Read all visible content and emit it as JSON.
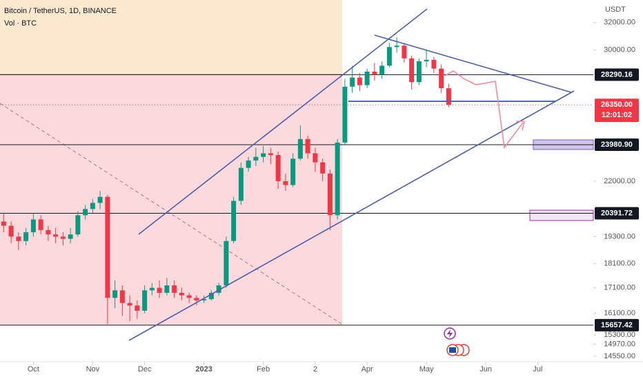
{
  "chart_data": {
    "type": "candlestick",
    "title": "Bitcoin / TetherUS, 1D, BINANCE",
    "subtitle": "Vol · BTC",
    "y_axis_label": "USDT",
    "up_color": "#089981",
    "down_color": "#f23645",
    "log_scale": true,
    "open": [
      20000,
      19800,
      19300,
      19100,
      19500,
      20100,
      19600,
      19400,
      19300,
      19200,
      19400,
      20300,
      20600,
      20900,
      21200,
      16700,
      17000,
      16500,
      16400,
      16200,
      17000,
      17100,
      16900,
      17200,
      16900,
      16800,
      16700,
      16600,
      16650,
      16900,
      17200,
      19100,
      21000,
      22700,
      23100,
      23300,
      23500,
      23400,
      22000,
      21800,
      23200,
      24300,
      23500,
      23000,
      22400,
      20300,
      24100,
      27500,
      28100,
      27600,
      28500,
      28300,
      28900,
      30200,
      30300,
      29400,
      27800,
      29200,
      29300,
      28700,
      27400,
      null,
      null,
      null,
      null,
      null,
      null,
      null,
      null,
      null,
      null,
      null,
      null,
      null,
      null,
      null,
      null,
      null,
      null,
      null
    ],
    "high": [
      20400,
      20000,
      19500,
      19700,
      20400,
      20300,
      19800,
      19700,
      19500,
      19700,
      20500,
      20800,
      21100,
      21500,
      21300,
      17400,
      17200,
      16800,
      16600,
      17200,
      17300,
      17400,
      17500,
      17400,
      17100,
      16900,
      16800,
      16800,
      17000,
      17300,
      19300,
      21200,
      23000,
      23300,
      23800,
      23900,
      23800,
      23600,
      22400,
      23500,
      25100,
      24500,
      23800,
      23200,
      22600,
      24300,
      28000,
      28900,
      28400,
      28700,
      29100,
      29200,
      30500,
      30900,
      30500,
      29600,
      29400,
      30000,
      29500,
      29000,
      27700,
      null,
      null,
      null,
      null,
      null,
      null,
      null,
      null,
      null,
      null,
      null,
      null,
      null,
      null,
      null,
      null,
      null,
      null,
      null
    ],
    "low": [
      19500,
      19000,
      18700,
      18900,
      19300,
      19400,
      19100,
      19000,
      18900,
      19000,
      19300,
      20100,
      20400,
      20600,
      15700,
      16300,
      16000,
      15800,
      15900,
      16100,
      16800,
      16700,
      16800,
      16700,
      16600,
      16500,
      16400,
      16500,
      16600,
      16800,
      17100,
      19000,
      20800,
      22500,
      22800,
      23000,
      22900,
      21600,
      21500,
      21700,
      23100,
      23200,
      22500,
      22000,
      19600,
      20100,
      24000,
      27100,
      27200,
      27400,
      27900,
      28000,
      28800,
      29800,
      29100,
      27300,
      27600,
      28800,
      28400,
      27100,
      26200,
      null,
      null,
      null,
      null,
      null,
      null,
      null,
      null,
      null,
      null,
      null,
      null,
      null,
      null,
      null,
      null,
      null,
      null,
      null
    ],
    "close": [
      19800,
      19300,
      19100,
      19500,
      20100,
      19600,
      19400,
      19300,
      19200,
      19400,
      20300,
      20600,
      20900,
      21200,
      16700,
      17000,
      16500,
      16400,
      16200,
      17000,
      17100,
      16900,
      17200,
      16900,
      16800,
      16700,
      16600,
      16650,
      16900,
      17200,
      19100,
      21000,
      22700,
      23100,
      23300,
      23500,
      23400,
      22000,
      21800,
      23200,
      24300,
      23500,
      23000,
      22400,
      20300,
      24100,
      27500,
      28100,
      27600,
      28500,
      28300,
      28900,
      30200,
      30300,
      29400,
      27800,
      29200,
      29300,
      28700,
      27400,
      26350,
      null,
      null,
      null,
      null,
      null,
      null,
      null,
      null,
      null,
      null,
      null,
      null,
      null,
      null,
      null,
      null,
      null,
      null,
      null
    ],
    "xlim": [
      -0.5,
      79.5
    ],
    "xticks": [
      {
        "value": 4,
        "label": "Oct"
      },
      {
        "value": 12,
        "label": "Nov"
      },
      {
        "value": 19,
        "label": "Dec"
      },
      {
        "value": 27,
        "label": "2023"
      },
      {
        "value": 35,
        "label": "Feb"
      },
      {
        "value": 42,
        "label": "2"
      },
      {
        "value": 49,
        "label": "Apr"
      },
      {
        "value": 57,
        "label": "May"
      },
      {
        "value": 65,
        "label": "Jun"
      },
      {
        "value": 72,
        "label": "Jul"
      }
    ],
    "ylim": [
      14360,
      33750
    ],
    "yticks": [
      {
        "value": 32000,
        "label": "32000.00"
      },
      {
        "value": 30000,
        "label": "30000.00"
      },
      {
        "value": 22000,
        "label": "22000.00"
      },
      {
        "value": 19300,
        "label": "19300.00"
      },
      {
        "value": 18100,
        "label": "18100.00"
      },
      {
        "value": 17100,
        "label": "17100.00"
      },
      {
        "value": 16100,
        "label": "16100.00"
      },
      {
        "value": 15300,
        "label": "15300.00"
      },
      {
        "value": 14970,
        "label": "14970.00"
      },
      {
        "value": 14550,
        "label": "14550.00"
      }
    ],
    "levels": [
      28290.16,
      23980.9,
      20391.72,
      15657.42
    ],
    "level_labels": [
      "28290.16",
      "23980.90",
      "20391.72",
      "15657.42"
    ],
    "last_price": 26350,
    "last_price_label": "26350.00",
    "countdown": "12:01:02"
  }
}
